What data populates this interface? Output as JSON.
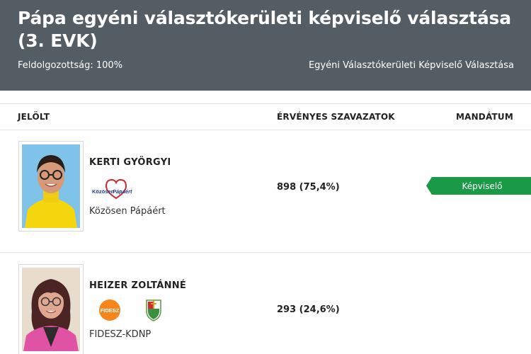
{
  "header": {
    "title": "Pápa egyéni választókerületi képviselő választása (3. EVK)",
    "progress": "Feldolgozottság: 100%",
    "election_type": "Egyéni Választókerületi Képviselő Választása"
  },
  "columns": {
    "candidate": "JELÖLT",
    "valid_votes": "ÉRVÉNYES SZAVAZATOK",
    "mandate": "MANDÁTUM"
  },
  "candidates": [
    {
      "name": "KERTI GYÖRGYI",
      "party": "Közösen Pápáért",
      "logo_text": "Közösen Pápáért",
      "votes": "898 (75,4%)",
      "mandate": "Képviselő"
    },
    {
      "name": "HEIZER ZOLTÁNNÉ",
      "party": "FIDESZ-KDNP",
      "logo_text": "FIDESZ",
      "votes": "293 (24,6%)",
      "mandate": ""
    }
  ],
  "colors": {
    "header_bg": "#535d63",
    "mandate_green": "#1a9a46",
    "fidesz_orange": "#f7851e"
  }
}
